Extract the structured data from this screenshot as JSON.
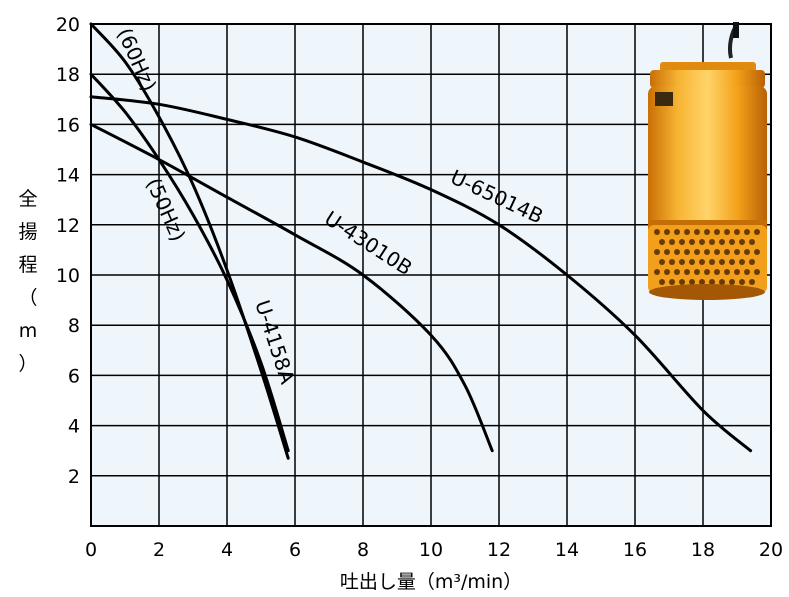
{
  "chart_data": {
    "type": "line",
    "xlabel": "吐出し量（m³/min）",
    "ylabel_chars": [
      "全",
      "揚",
      "程",
      "（",
      "m",
      "）"
    ],
    "xlim": [
      0,
      20
    ],
    "ylim": [
      0,
      20
    ],
    "x_ticks": [
      "0",
      "2",
      "4",
      "6",
      "8",
      "10",
      "12",
      "14",
      "16",
      "18",
      "20"
    ],
    "y_ticks": [
      "2",
      "4",
      "6",
      "8",
      "10",
      "12",
      "14",
      "16",
      "18",
      "20"
    ],
    "grid": true,
    "background": "#eef5fb",
    "line_color": "#000000",
    "series": [
      {
        "name": "U-4158A (60Hz)",
        "points": [
          [
            0,
            20
          ],
          [
            1,
            18.5
          ],
          [
            2,
            16.3
          ],
          [
            3,
            13.6
          ],
          [
            4,
            10.2
          ],
          [
            5,
            6.2
          ],
          [
            5.8,
            2.7
          ]
        ]
      },
      {
        "name": "U-4158A (50Hz)",
        "points": [
          [
            0,
            18
          ],
          [
            1,
            16.5
          ],
          [
            2,
            14.6
          ],
          [
            3,
            12.4
          ],
          [
            4,
            9.8
          ],
          [
            5,
            6.5
          ],
          [
            5.8,
            3.0
          ]
        ]
      },
      {
        "name": "U-43010B",
        "points": [
          [
            0,
            16
          ],
          [
            2,
            14.6
          ],
          [
            4,
            13.1
          ],
          [
            6,
            11.6
          ],
          [
            8,
            10.0
          ],
          [
            10,
            7.6
          ],
          [
            11,
            5.6
          ],
          [
            11.8,
            3.0
          ]
        ]
      },
      {
        "name": "U-65014B",
        "points": [
          [
            0,
            17.1
          ],
          [
            2,
            16.8
          ],
          [
            4,
            16.2
          ],
          [
            6,
            15.5
          ],
          [
            8,
            14.5
          ],
          [
            10,
            13.4
          ],
          [
            12,
            12.0
          ],
          [
            14,
            10.0
          ],
          [
            16,
            7.6
          ],
          [
            18,
            4.6
          ],
          [
            19.4,
            3.0
          ]
        ]
      }
    ],
    "labels": {
      "hz60": "(60Hz)",
      "hz50": "(50Hz)",
      "u4158a": "U-4158A",
      "u43010b": "U-43010B",
      "u65014b": "U-65014B"
    }
  },
  "product_image": {
    "kind": "submersible-pump",
    "color": "#f4a21a"
  }
}
